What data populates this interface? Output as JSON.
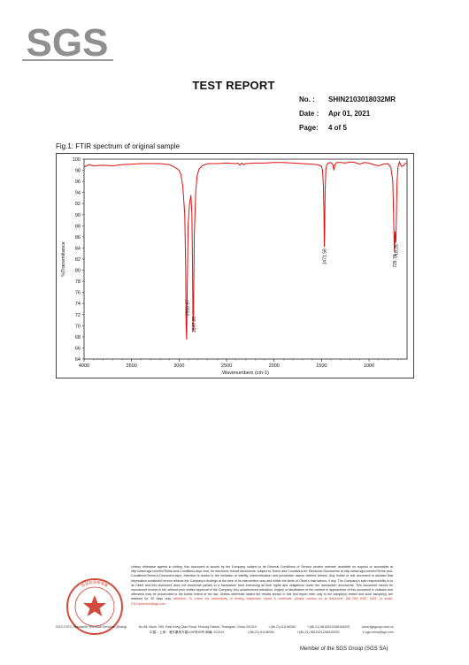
{
  "logo": {
    "text": "SGS"
  },
  "report": {
    "title": "TEST REPORT",
    "no_label": "No. :",
    "no_value": "SHIN2103018032MR",
    "date_label": "Date :",
    "date_value": "Apr 01, 2021",
    "page_label": "Page:",
    "page_value": "4 of 5"
  },
  "figure": {
    "caption": "Fig.1: FTIR spectrum of original sample"
  },
  "chart_data": {
    "type": "line",
    "title": "",
    "xlabel": "Wavenumbers (cm-1)",
    "ylabel": "%Transmittance",
    "xlim": [
      4000,
      600
    ],
    "ylim": [
      64,
      100
    ],
    "x_ticks": [
      4000,
      3500,
      3000,
      2500,
      2000,
      1500,
      1000
    ],
    "y_ticks": [
      64,
      66,
      68,
      70,
      72,
      74,
      76,
      78,
      80,
      82,
      84,
      86,
      88,
      90,
      92,
      94,
      96,
      98,
      100
    ],
    "color": "#e01010",
    "series": [
      {
        "x": [
          4000,
          3950,
          3900,
          3800,
          3700,
          3600,
          3500,
          3400,
          3300,
          3200,
          3100,
          3050,
          3000,
          2980,
          2960,
          2940,
          2930,
          2926,
          2920,
          2915,
          2905,
          2890,
          2875,
          2865,
          2858,
          2853,
          2848,
          2840,
          2825,
          2810,
          2790,
          2760,
          2700,
          2600,
          2500,
          2400,
          2380,
          2360,
          2340,
          2320,
          2300,
          2200,
          2100,
          2000,
          1900,
          1800,
          1700,
          1600,
          1540,
          1500,
          1490,
          1480,
          1475,
          1471,
          1467,
          1463,
          1455,
          1445,
          1430,
          1400,
          1380,
          1370,
          1360,
          1340,
          1300,
          1250,
          1200,
          1150,
          1100,
          1050,
          1000,
          950,
          900,
          850,
          800,
          770,
          750,
          742,
          735,
          731,
          727,
          725,
          722,
          719,
          716,
          712,
          705,
          695,
          680,
          660,
          640,
          620,
          600
        ],
        "y": [
          98.6,
          99.0,
          98.8,
          98.9,
          98.8,
          99.0,
          99.1,
          99.2,
          99.2,
          99.2,
          99.0,
          98.6,
          98.0,
          97.2,
          95.0,
          90.0,
          80.0,
          70.0,
          67.5,
          75.0,
          88.0,
          92.0,
          93.5,
          90.0,
          80.0,
          69.0,
          72.0,
          86.0,
          94.0,
          97.0,
          98.2,
          98.8,
          99.2,
          99.2,
          99.3,
          99.2,
          99.3,
          98.9,
          99.3,
          99.0,
          99.2,
          99.3,
          99.3,
          99.4,
          99.4,
          99.3,
          99.2,
          99.1,
          99.0,
          98.7,
          98.0,
          95.0,
          90.0,
          84.2,
          87.0,
          94.0,
          98.0,
          99.0,
          99.3,
          99.4,
          99.0,
          98.0,
          99.0,
          99.4,
          99.4,
          99.3,
          99.5,
          99.4,
          99.1,
          99.4,
          99.3,
          99.0,
          98.8,
          99.1,
          99.2,
          98.5,
          96.0,
          90.0,
          84.0,
          83.2,
          87.0,
          86.2,
          85.5,
          85.0,
          85.9,
          90.0,
          96.0,
          98.6,
          99.5,
          98.7,
          98.8,
          99.2,
          99.4
        ]
      }
    ],
    "annotations": [
      {
        "x": 2916.87,
        "text": "2916.87"
      },
      {
        "x": 2847.0,
        "text": "2847.00"
      },
      {
        "x": 1471.58,
        "text": "1471.58"
      },
      {
        "x": 729.71,
        "text": "729.71"
      },
      {
        "x": 718.26,
        "text": "718.26"
      }
    ]
  },
  "footer": {
    "disclaimer": "Unless otherwise agreed in writing, this document is issued by the Company subject to its General Conditions of Service printed overleaf, available on request or accessible at http://www.sgs.com/en/Terms-and-Conditions.aspx and, for electronic format documents, subject to Terms and Conditions for Electronic Documents at http://www.sgs.com/en/Terms-and-Conditions/Terms-e-Document.aspx. Attention is drawn to the limitation of liability, indemnification and jurisdiction issues defined therein. Any holder of this document is advised that information contained hereon reflects the Company's findings at the time of its intervention only and within the limits of Client's instructions, if any. The Company's sole responsibility is to its Client and this document does not exonerate parties to a transaction from exercising all their rights and obligations under the transaction documents. This document cannot be reproduced except in full, without prior written approval of the Company. Any unauthorized alteration, forgery or falsification of the content or appearance of this document is unlawful and offenders may be prosecuted to the fullest extent of the law. Unless otherwise stated the results shown in this test report refer only to the sample(s) tested and such sample(s) are retained for 30 days only.",
    "attention": "Attention: To check the authenticity of testing /inspection report & certificate, please contact us at telephone: (86-755) 8307 1443, or email: CN.Doccheck@sgs.com",
    "address_en": "No.88, Block 7/89, East Kang Qiao Road, Pudong District, Shanghai, China  201319",
    "address_cn": "中国・上海・浦东康桥东路1159号89号      邮编: 201319",
    "tel1": "t (86-21) 61196300",
    "fax1": "f (86-21) 68183212/68183920",
    "web": "www.sgsgroup.com.cn",
    "tel2": "t (86-21) 61196300",
    "fax2": "f (86-21) 68183212/68183920",
    "email": "e sgs.china@sgs.com",
    "seal_text": "SGS-CSTC Standards Technical Services (Shanghai) Co., Ltd. Testing Center",
    "member": "Member of the SGS Group (SGS SA)"
  }
}
